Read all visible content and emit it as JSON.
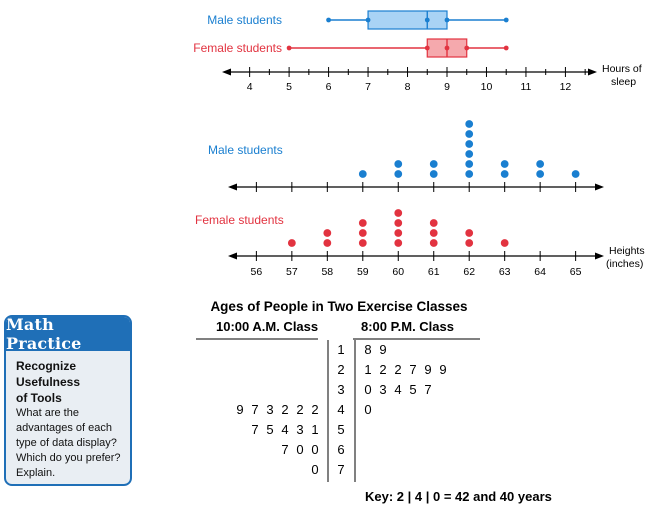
{
  "chart_data": [
    {
      "type": "box",
      "xlabel": "Hours of sleep",
      "ticks": [
        4,
        5,
        6,
        7,
        8,
        9,
        10,
        11,
        12
      ],
      "xlim": [
        3.3,
        12.8
      ],
      "series": [
        {
          "name": "Male students",
          "min": 6,
          "q1": 7,
          "median": 8.5,
          "q3": 9,
          "max": 10.5,
          "color": "#1a7fd0",
          "fill": "#a9d3f5"
        },
        {
          "name": "Female students",
          "min": 5,
          "q1": 8.5,
          "median": 9,
          "q3": 9.5,
          "max": 10.5,
          "color": "#e23340",
          "fill": "#f5a9ad"
        }
      ]
    },
    {
      "type": "dot",
      "xlabel": "Heights (inches)",
      "ticks": [
        56,
        57,
        58,
        59,
        60,
        61,
        62,
        63,
        64,
        65
      ],
      "xlim": [
        55.2,
        65.8
      ],
      "series": [
        {
          "name": "Male students",
          "color": "#1a7fd0",
          "counts": {
            "56": 0,
            "57": 0,
            "58": 0,
            "59": 1,
            "60": 2,
            "61": 2,
            "62": 6,
            "63": 2,
            "64": 2,
            "65": 1
          }
        },
        {
          "name": "Female students",
          "color": "#e23340",
          "counts": {
            "56": 0,
            "57": 1,
            "58": 2,
            "59": 3,
            "60": 4,
            "61": 3,
            "62": 2,
            "63": 1,
            "64": 0,
            "65": 0
          }
        }
      ]
    },
    {
      "type": "table",
      "subtype": "back-to-back stem-and-leaf",
      "title": "Ages of People in Two Exercise Classes",
      "left_header": "10:00 A.M. Class",
      "right_header": "8:00 P.M. Class",
      "rows": [
        {
          "stem": "1",
          "left": [],
          "right": [
            "8",
            "9"
          ]
        },
        {
          "stem": "2",
          "left": [],
          "right": [
            "1",
            "2",
            "2",
            "7",
            "9",
            "9"
          ]
        },
        {
          "stem": "3",
          "left": [],
          "right": [
            "0",
            "3",
            "4",
            "5",
            "7"
          ]
        },
        {
          "stem": "4",
          "left": [
            "9",
            "7",
            "3",
            "2",
            "2",
            "2"
          ],
          "right": [
            "0"
          ]
        },
        {
          "stem": "5",
          "left": [
            "7",
            "5",
            "4",
            "3",
            "1"
          ],
          "right": []
        },
        {
          "stem": "6",
          "left": [
            "7",
            "0",
            "0"
          ],
          "right": []
        },
        {
          "stem": "7",
          "left": [
            "0"
          ],
          "right": []
        }
      ],
      "key": "Key: 2 | 4 | 0 = 42 and 40 years"
    }
  ],
  "math_practice": {
    "header": "Math Practice",
    "topic_lines": [
      "Recognize",
      "Usefulness",
      "of Tools"
    ],
    "question_lines": [
      "What are the",
      "advantages of each",
      "type of data display?",
      "Which do you prefer?",
      "Explain."
    ]
  }
}
